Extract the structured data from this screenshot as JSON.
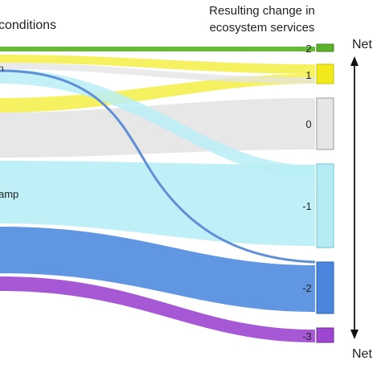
{
  "header": {
    "left_title": "conditions",
    "right_title_line1": "Resulting change in",
    "right_title_line2": "ecosystem services"
  },
  "net_labels": {
    "top": "Net",
    "bottom": "Net"
  },
  "left_labels": {
    "fragment_n": "n",
    "fragment_amp": "amp"
  },
  "change_levels": [
    {
      "label": "2",
      "color": "#5bb02c"
    },
    {
      "label": "1",
      "color": "#f2ea1a"
    },
    {
      "label": "0",
      "color": "#e6e6e6"
    },
    {
      "label": "-1",
      "color": "#b5ecf4"
    },
    {
      "label": "-2",
      "color": "#4a86dd"
    },
    {
      "label": "-3",
      "color": "#9d46cf"
    }
  ],
  "colors": {
    "green": "#69b83a",
    "yellow": "#f4ee45",
    "grey": "#e3e3e3",
    "light_blue": "#b9eef6",
    "blue": "#5990e0",
    "blue_line": "#5f8fd6",
    "purple": "#a14fd3"
  }
}
